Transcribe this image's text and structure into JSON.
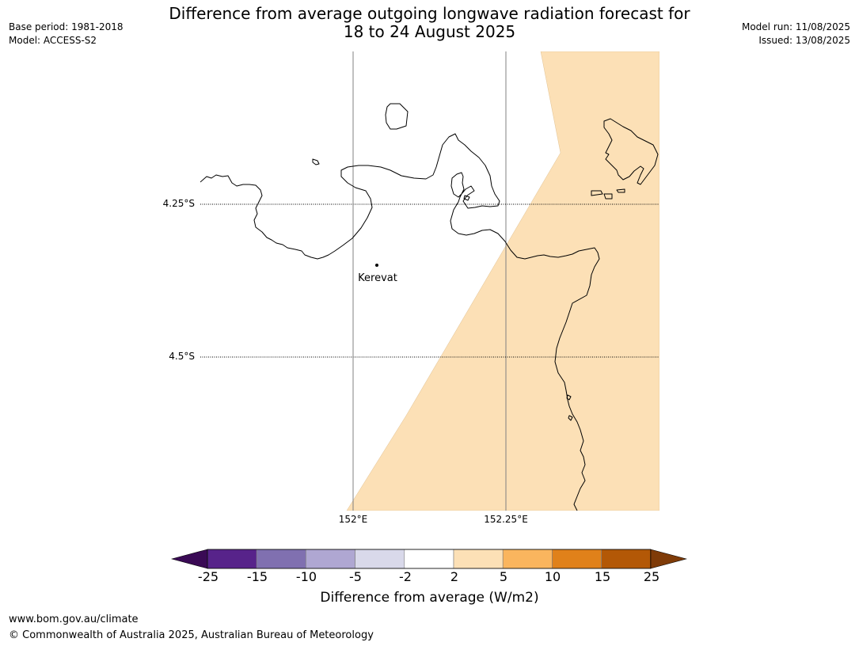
{
  "title": {
    "line1": "Difference from average outgoing longwave radiation forecast for",
    "line2": "18 to 24 August 2025"
  },
  "header_left": {
    "base_period": "Base period: 1981-2018",
    "model": "Model: ACCESS-S2"
  },
  "header_right": {
    "model_run": "Model run: 11/08/2025",
    "issued": "Issued: 13/08/2025"
  },
  "map": {
    "place": "Kerevat",
    "lat_labels": [
      "4.25°S",
      "4.5°S"
    ],
    "lon_labels": [
      "152°E",
      "152.25°E"
    ],
    "shaded_category": "2 to 5",
    "colors": {
      "land_outline": "#000000",
      "anomaly_fill": "#fce0b6",
      "gridline": "#808080"
    }
  },
  "colorbar": {
    "ticks": [
      "-25",
      "-15",
      "-10",
      "-5",
      "-2",
      "2",
      "5",
      "10",
      "15",
      "25"
    ],
    "label": "Difference from average (W/m2)",
    "colors": [
      "#3a0a55",
      "#57238a",
      "#8070b0",
      "#afa7d2",
      "#d9d9ea",
      "#ffffff",
      "#fce0b6",
      "#fab55e",
      "#e0811a",
      "#b35806",
      "#7f3b08"
    ]
  },
  "footer": {
    "url": "www.bom.gov.au/climate",
    "copyright": "© Commonwealth of Australia 2025, Australian Bureau of Meteorology"
  }
}
